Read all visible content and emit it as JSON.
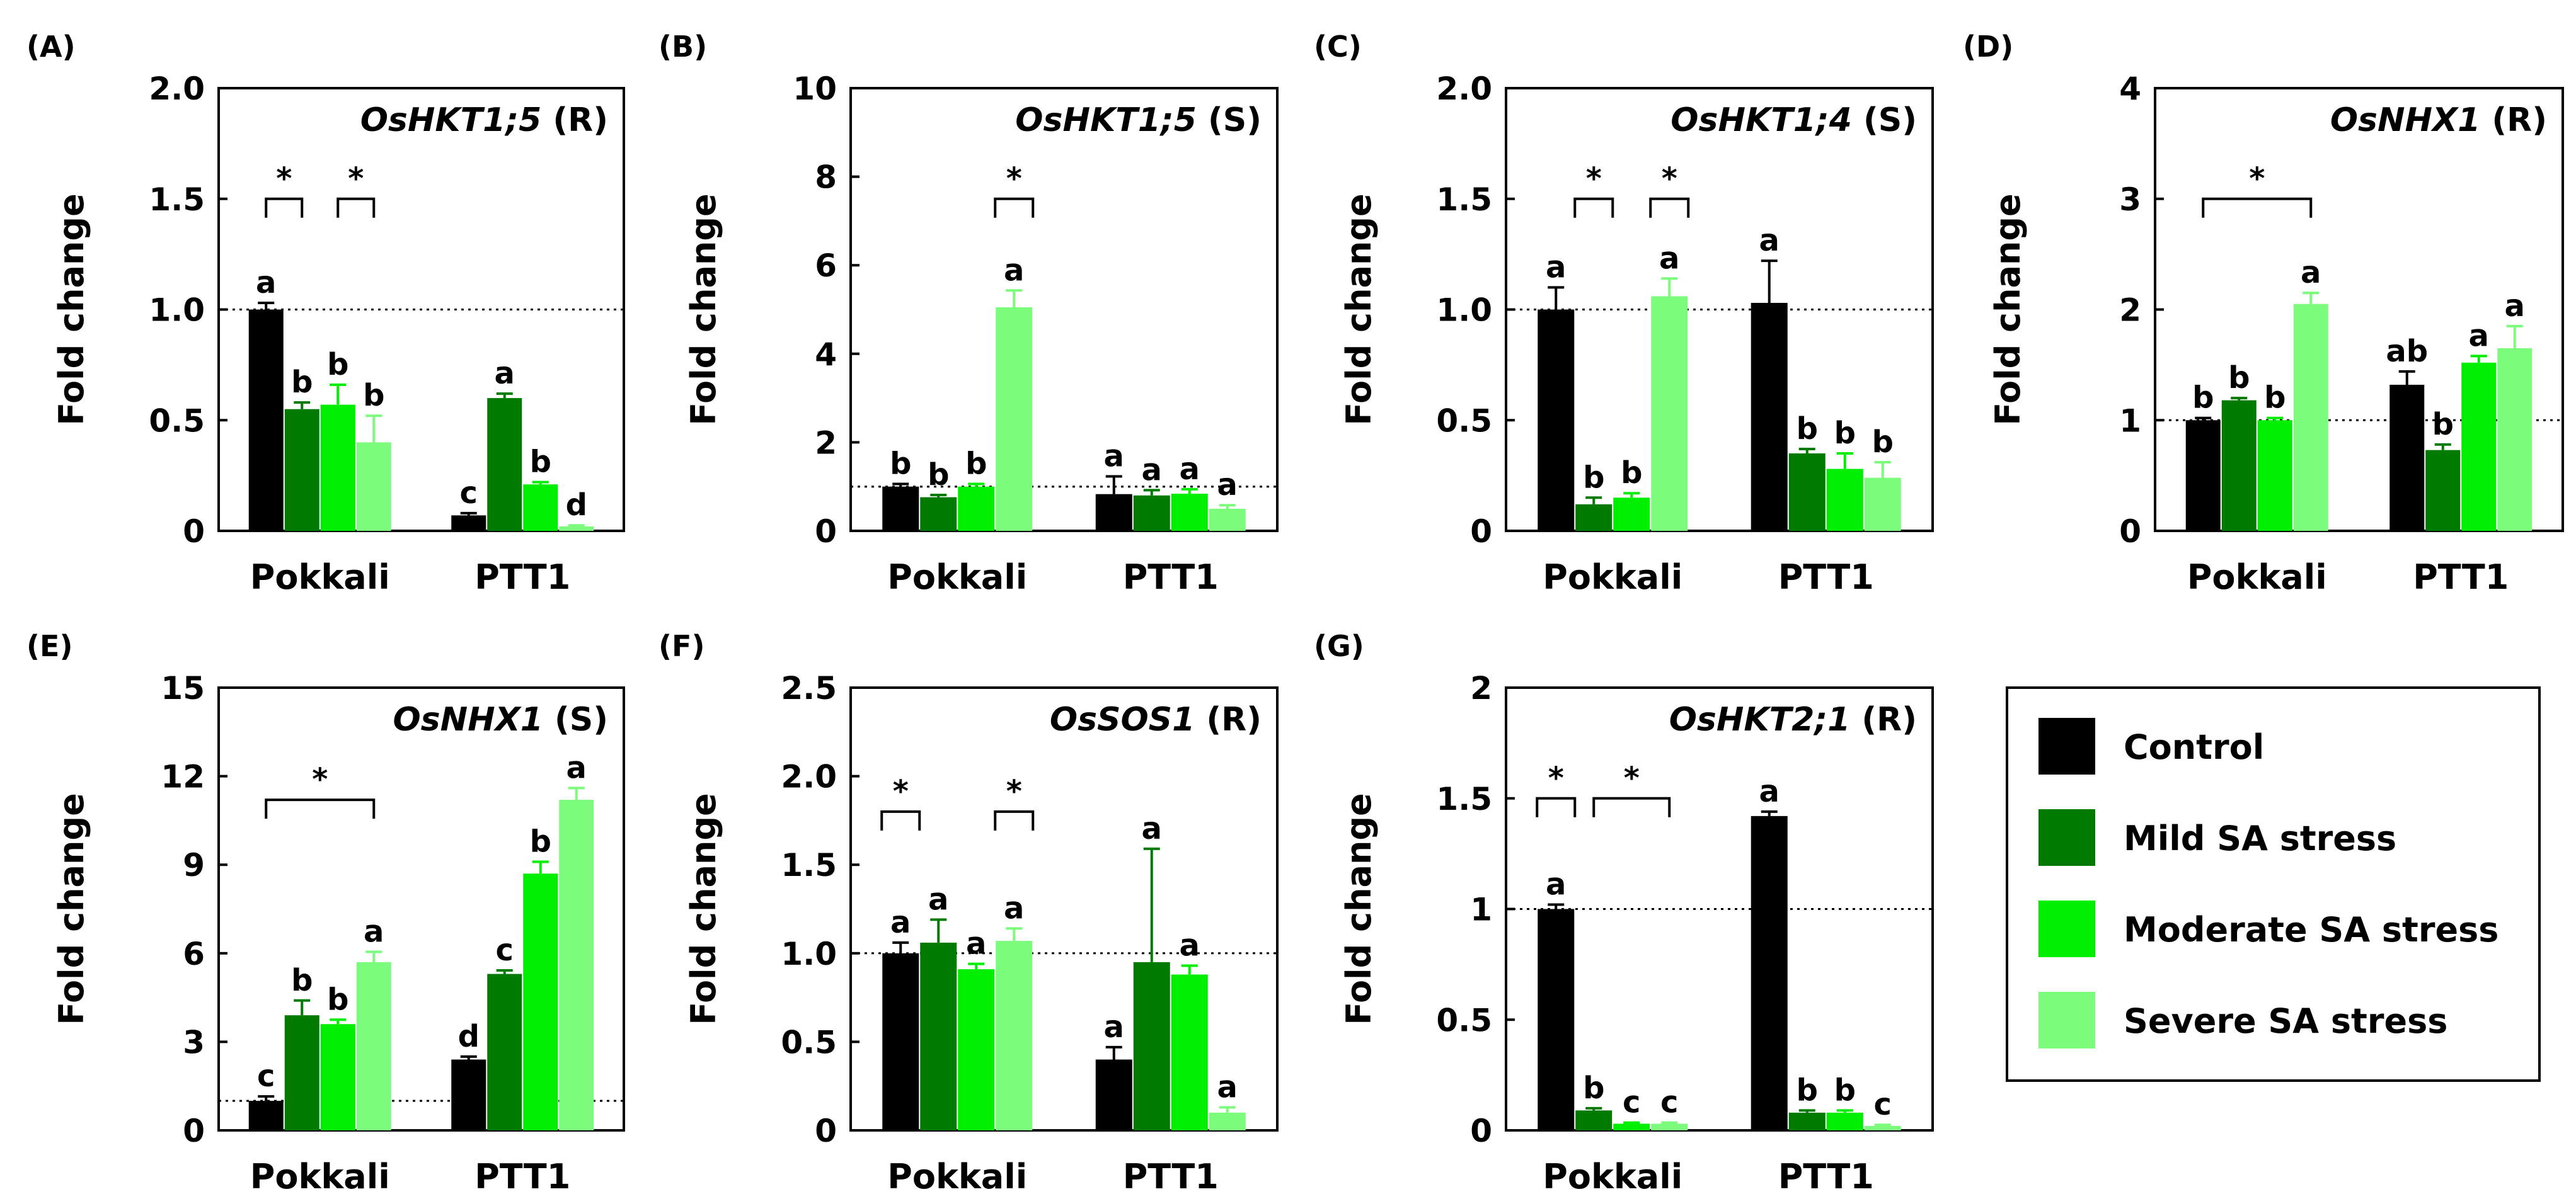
{
  "figure": {
    "legend": {
      "items": [
        {
          "label": "Control",
          "color": "#000000"
        },
        {
          "label": "Mild SA stress",
          "color": "#007a00"
        },
        {
          "label": "Moderate SA stress",
          "color": "#00ee00"
        },
        {
          "label": "Severe SA stress",
          "color": "#7dfb7d"
        }
      ]
    }
  },
  "chart_data": [
    {
      "panel": "(A)",
      "type": "bar",
      "gene": "OsHKT1;5",
      "tissue": "(R)",
      "ylabel": "Fold change",
      "ylim": [
        0,
        2.0
      ],
      "yticks": [
        "0",
        "0.5",
        "1.0",
        "1.5",
        "2.0"
      ],
      "tickvals": [
        0,
        0.5,
        1.0,
        1.5,
        2.0
      ],
      "reference_line": 1.0,
      "categories": [
        "Pokkali",
        "PTT1"
      ],
      "series": [
        {
          "name": "Control",
          "values": [
            1.0,
            0.07
          ],
          "errors": [
            0.03,
            0.01
          ],
          "letters": [
            "a",
            "c"
          ]
        },
        {
          "name": "Mild SA stress",
          "values": [
            0.55,
            0.6
          ],
          "errors": [
            0.03,
            0.02
          ],
          "letters": [
            "b",
            "a"
          ]
        },
        {
          "name": "Moderate SA stress",
          "values": [
            0.57,
            0.21
          ],
          "errors": [
            0.09,
            0.01
          ],
          "letters": [
            "b",
            "b"
          ]
        },
        {
          "name": "Severe SA stress",
          "values": [
            0.4,
            0.02
          ],
          "errors": [
            0.12,
            0.005
          ],
          "letters": [
            "b",
            "d"
          ]
        }
      ],
      "significance": [
        {
          "group": 0,
          "from": 0,
          "to": 1,
          "level": 1.5,
          "label": "*"
        },
        {
          "group": 0,
          "from": 2,
          "to": 3,
          "level": 1.5,
          "label": "*"
        }
      ]
    },
    {
      "panel": "(B)",
      "type": "bar",
      "gene": "OsHKT1;5",
      "tissue": "(S)",
      "ylabel": "Fold change",
      "ylim": [
        0,
        10
      ],
      "yticks": [
        "0",
        "2",
        "4",
        "6",
        "8",
        "10"
      ],
      "tickvals": [
        0,
        2,
        4,
        6,
        8,
        10
      ],
      "reference_line": 1.0,
      "categories": [
        "Pokkali",
        "PTT1"
      ],
      "series": [
        {
          "name": "Control",
          "values": [
            1.0,
            0.83
          ],
          "errors": [
            0.06,
            0.4
          ],
          "letters": [
            "b",
            "a"
          ]
        },
        {
          "name": "Mild SA stress",
          "values": [
            0.76,
            0.8
          ],
          "errors": [
            0.05,
            0.12
          ],
          "letters": [
            "b",
            "a"
          ]
        },
        {
          "name": "Moderate SA stress",
          "values": [
            1.0,
            0.84
          ],
          "errors": [
            0.06,
            0.1
          ],
          "letters": [
            "b",
            "a"
          ]
        },
        {
          "name": "Severe SA stress",
          "values": [
            5.05,
            0.5
          ],
          "errors": [
            0.38,
            0.08
          ],
          "letters": [
            "a",
            "a"
          ]
        }
      ],
      "significance": [
        {
          "group": 0,
          "from": 3,
          "to": 3,
          "level": 7.5,
          "label": "*"
        }
      ]
    },
    {
      "panel": "(C)",
      "type": "bar",
      "gene": "OsHKT1;4",
      "tissue": "(S)",
      "ylabel": "Fold change",
      "ylim": [
        0,
        2.0
      ],
      "yticks": [
        "0",
        "0.5",
        "1.0",
        "1.5",
        "2.0"
      ],
      "tickvals": [
        0,
        0.5,
        1.0,
        1.5,
        2.0
      ],
      "reference_line": 1.0,
      "categories": [
        "Pokkali",
        "PTT1"
      ],
      "series": [
        {
          "name": "Control",
          "values": [
            1.0,
            1.03
          ],
          "errors": [
            0.1,
            0.19
          ],
          "letters": [
            "a",
            "a"
          ]
        },
        {
          "name": "Mild SA stress",
          "values": [
            0.12,
            0.35
          ],
          "errors": [
            0.03,
            0.02
          ],
          "letters": [
            "b",
            "b"
          ]
        },
        {
          "name": "Moderate SA stress",
          "values": [
            0.15,
            0.28
          ],
          "errors": [
            0.02,
            0.07
          ],
          "letters": [
            "b",
            "b"
          ]
        },
        {
          "name": "Severe SA stress",
          "values": [
            1.06,
            0.24
          ],
          "errors": [
            0.08,
            0.07
          ],
          "letters": [
            "a",
            "b"
          ]
        }
      ],
      "significance": [
        {
          "group": 0,
          "from": 1,
          "to": 1,
          "level": 1.5,
          "label": "*"
        },
        {
          "group": 0,
          "from": 3,
          "to": 3,
          "level": 1.5,
          "label": "*"
        }
      ]
    },
    {
      "panel": "(D)",
      "type": "bar",
      "gene": "OsNHX1",
      "tissue": "(R)",
      "ylabel": "Fold change",
      "ylim": [
        0,
        4
      ],
      "yticks": [
        "0",
        "1",
        "2",
        "3",
        "4"
      ],
      "tickvals": [
        0,
        1,
        2,
        3,
        4
      ],
      "reference_line": 1.0,
      "categories": [
        "Pokkali",
        "PTT1"
      ],
      "series": [
        {
          "name": "Control",
          "values": [
            1.0,
            1.32
          ],
          "errors": [
            0.02,
            0.12
          ],
          "letters": [
            "b",
            "ab"
          ]
        },
        {
          "name": "Mild SA stress",
          "values": [
            1.18,
            0.73
          ],
          "errors": [
            0.02,
            0.05
          ],
          "letters": [
            "b",
            "b"
          ]
        },
        {
          "name": "Moderate SA stress",
          "values": [
            1.0,
            1.52
          ],
          "errors": [
            0.02,
            0.06
          ],
          "letters": [
            "b",
            "a"
          ]
        },
        {
          "name": "Severe SA stress",
          "values": [
            2.05,
            1.65
          ],
          "errors": [
            0.1,
            0.2
          ],
          "letters": [
            "a",
            "a"
          ]
        }
      ],
      "significance": [
        {
          "group": 0,
          "from": 0,
          "to": 3,
          "level": 3.0,
          "label": "*"
        }
      ]
    },
    {
      "panel": "(E)",
      "type": "bar",
      "gene": "OsNHX1",
      "tissue": "(S)",
      "ylabel": "Fold change",
      "ylim": [
        0,
        15
      ],
      "yticks": [
        "0",
        "3",
        "6",
        "9",
        "12",
        "15"
      ],
      "tickvals": [
        0,
        3,
        6,
        9,
        12,
        15
      ],
      "reference_line": 1.0,
      "categories": [
        "Pokkali",
        "PTT1"
      ],
      "series": [
        {
          "name": "Control",
          "values": [
            1.0,
            2.4
          ],
          "errors": [
            0.15,
            0.1
          ],
          "letters": [
            "c",
            "d"
          ]
        },
        {
          "name": "Mild SA stress",
          "values": [
            3.9,
            5.3
          ],
          "errors": [
            0.5,
            0.12
          ],
          "letters": [
            "b",
            "c"
          ]
        },
        {
          "name": "Moderate SA stress",
          "values": [
            3.6,
            8.7
          ],
          "errors": [
            0.15,
            0.4
          ],
          "letters": [
            "b",
            "b"
          ]
        },
        {
          "name": "Severe SA stress",
          "values": [
            5.7,
            11.2
          ],
          "errors": [
            0.35,
            0.4
          ],
          "letters": [
            "a",
            "a"
          ]
        }
      ],
      "significance": [
        {
          "group": 0,
          "from": 0,
          "to": 3,
          "level": 11.2,
          "label": "*"
        }
      ]
    },
    {
      "panel": "(F)",
      "type": "bar",
      "gene": "OsSOS1",
      "tissue": "(R)",
      "ylabel": "Fold change",
      "ylim": [
        0,
        2.5
      ],
      "yticks": [
        "0",
        "0.5",
        "1.0",
        "1.5",
        "2.0",
        "2.5"
      ],
      "tickvals": [
        0,
        0.5,
        1.0,
        1.5,
        2.0,
        2.5
      ],
      "reference_line": 1.0,
      "categories": [
        "Pokkali",
        "PTT1"
      ],
      "series": [
        {
          "name": "Control",
          "values": [
            1.0,
            0.4
          ],
          "errors": [
            0.06,
            0.07
          ],
          "letters": [
            "a",
            "a"
          ]
        },
        {
          "name": "Mild SA stress",
          "values": [
            1.06,
            0.95
          ],
          "errors": [
            0.13,
            0.64
          ],
          "letters": [
            "a",
            "a"
          ]
        },
        {
          "name": "Moderate SA stress",
          "values": [
            0.91,
            0.88
          ],
          "errors": [
            0.03,
            0.05
          ],
          "letters": [
            "a",
            "a"
          ]
        },
        {
          "name": "Severe SA stress",
          "values": [
            1.07,
            0.1
          ],
          "errors": [
            0.07,
            0.03
          ],
          "letters": [
            "a",
            "a"
          ]
        }
      ],
      "significance": [
        {
          "group": 0,
          "from": 0,
          "to": 0,
          "level": 1.8,
          "label": "*"
        },
        {
          "group": 0,
          "from": 3,
          "to": 3,
          "level": 1.8,
          "label": "*"
        }
      ]
    },
    {
      "panel": "(G)",
      "type": "bar",
      "gene": "OsHKT2;1",
      "tissue": "(R)",
      "ylabel": "Fold change",
      "ylim": [
        0,
        2
      ],
      "yticks": [
        "0",
        "0.5",
        "1",
        "1.5",
        "2"
      ],
      "tickvals": [
        0,
        0.5,
        1,
        1.5,
        2
      ],
      "reference_line": 1.0,
      "categories": [
        "Pokkali",
        "PTT1"
      ],
      "series": [
        {
          "name": "Control",
          "values": [
            1.0,
            1.42
          ],
          "errors": [
            0.02,
            0.02
          ],
          "letters": [
            "a",
            "a"
          ]
        },
        {
          "name": "Mild SA stress",
          "values": [
            0.09,
            0.08
          ],
          "errors": [
            0.01,
            0.01
          ],
          "letters": [
            "b",
            "b"
          ]
        },
        {
          "name": "Moderate SA stress",
          "values": [
            0.03,
            0.08
          ],
          "errors": [
            0.005,
            0.01
          ],
          "letters": [
            "c",
            "b"
          ]
        },
        {
          "name": "Severe SA stress",
          "values": [
            0.03,
            0.02
          ],
          "errors": [
            0.005,
            0.005
          ],
          "letters": [
            "c",
            "c"
          ]
        }
      ],
      "significance": [
        {
          "group": 0,
          "from": 0,
          "to": 0,
          "level": 1.5,
          "label": "*"
        },
        {
          "group": 0,
          "from": 1,
          "to": 3,
          "level": 1.5,
          "label": "*"
        }
      ]
    }
  ]
}
